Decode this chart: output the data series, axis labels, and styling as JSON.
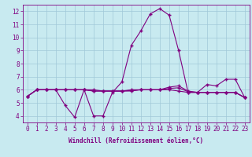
{
  "x": [
    0,
    1,
    2,
    3,
    4,
    5,
    6,
    7,
    8,
    9,
    10,
    11,
    12,
    13,
    14,
    15,
    16,
    17,
    18,
    19,
    20,
    21,
    22,
    23
  ],
  "windchill": [
    5.5,
    6.0,
    6.0,
    6.0,
    4.8,
    3.9,
    6.0,
    4.0,
    4.0,
    5.8,
    6.6,
    9.4,
    10.5,
    11.8,
    12.2,
    11.7,
    9.0,
    5.8,
    5.8,
    6.4,
    6.3,
    6.8,
    6.8,
    5.4
  ],
  "temp_line1": [
    5.5,
    6.0,
    6.0,
    6.0,
    6.0,
    6.0,
    6.0,
    5.9,
    5.9,
    5.9,
    5.9,
    6.0,
    6.0,
    6.0,
    6.0,
    6.2,
    6.3,
    5.9,
    5.8,
    5.8,
    5.8,
    5.8,
    5.8,
    5.4
  ],
  "temp_line2": [
    5.5,
    6.0,
    6.0,
    6.0,
    6.0,
    6.0,
    6.0,
    5.9,
    5.9,
    5.9,
    5.9,
    5.95,
    6.0,
    6.0,
    6.0,
    6.1,
    6.15,
    5.85,
    5.8,
    5.8,
    5.8,
    5.8,
    5.8,
    5.4
  ],
  "temp_line3": [
    5.5,
    6.0,
    6.0,
    6.0,
    6.0,
    6.0,
    6.0,
    6.0,
    5.9,
    5.9,
    5.9,
    5.9,
    6.0,
    6.0,
    6.0,
    6.0,
    5.9,
    5.8,
    5.8,
    5.8,
    5.8,
    5.8,
    5.8,
    5.4
  ],
  "line_color": "#800080",
  "bg_color": "#c8eaf0",
  "grid_color": "#a0c8d8",
  "xlabel": "Windchill (Refroidissement éolien,°C)",
  "ylim": [
    3.5,
    12.5
  ],
  "xlim": [
    -0.5,
    23.5
  ],
  "yticks": [
    4,
    5,
    6,
    7,
    8,
    9,
    10,
    11,
    12
  ],
  "xticks": [
    0,
    1,
    2,
    3,
    4,
    5,
    6,
    7,
    8,
    9,
    10,
    11,
    12,
    13,
    14,
    15,
    16,
    17,
    18,
    19,
    20,
    21,
    22,
    23
  ],
  "marker": "+",
  "markersize": 3,
  "linewidth": 0.8,
  "tick_fontsize": 5.5,
  "xlabel_fontsize": 5.5
}
